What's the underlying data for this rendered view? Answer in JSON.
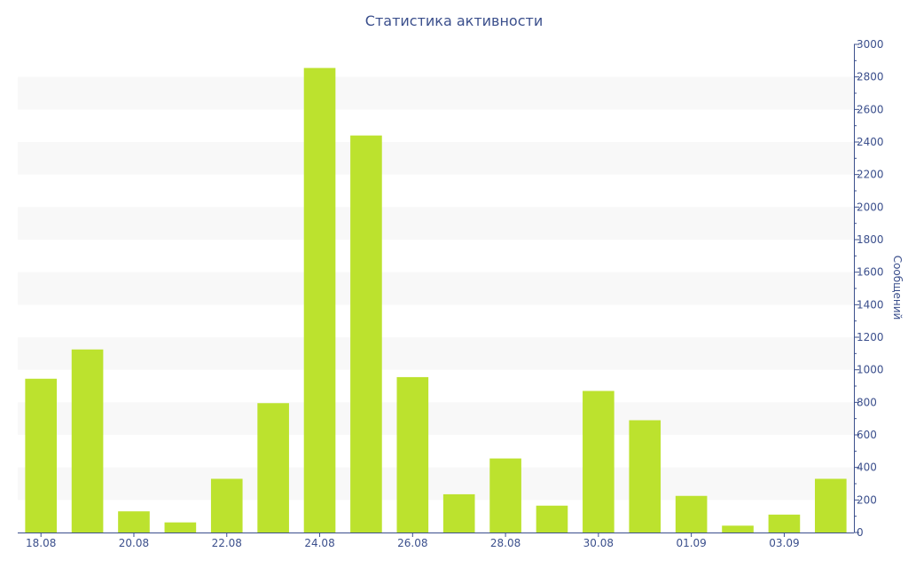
{
  "chart_data": {
    "type": "bar",
    "title": "Статистика активности",
    "xlabel": "",
    "ylabel": "Сообщений",
    "y_axis_side": "right",
    "ylim": [
      0,
      3000
    ],
    "y_ticks": [
      0,
      200,
      400,
      600,
      800,
      1000,
      1200,
      1400,
      1600,
      1800,
      2000,
      2200,
      2400,
      2600,
      2800,
      3000
    ],
    "categories": [
      "18.08",
      "19.08",
      "20.08",
      "21.08",
      "22.08",
      "23.08",
      "24.08",
      "25.08",
      "26.08",
      "27.08",
      "28.08",
      "29.08",
      "30.08",
      "31.08",
      "01.09",
      "02.09",
      "03.09",
      "04.09"
    ],
    "x_tick_labels": [
      "18.08",
      "20.08",
      "22.08",
      "24.08",
      "26.08",
      "28.08",
      "30.08",
      "01.09",
      "03.09"
    ],
    "values": [
      945,
      1125,
      130,
      62,
      330,
      795,
      2855,
      2440,
      955,
      235,
      455,
      165,
      870,
      690,
      225,
      42,
      110,
      330
    ],
    "bar_color": "#bce22e",
    "band_color": "#f8f8f8",
    "axis_color": "#3b4f8c",
    "grid": "alternating-bands"
  }
}
